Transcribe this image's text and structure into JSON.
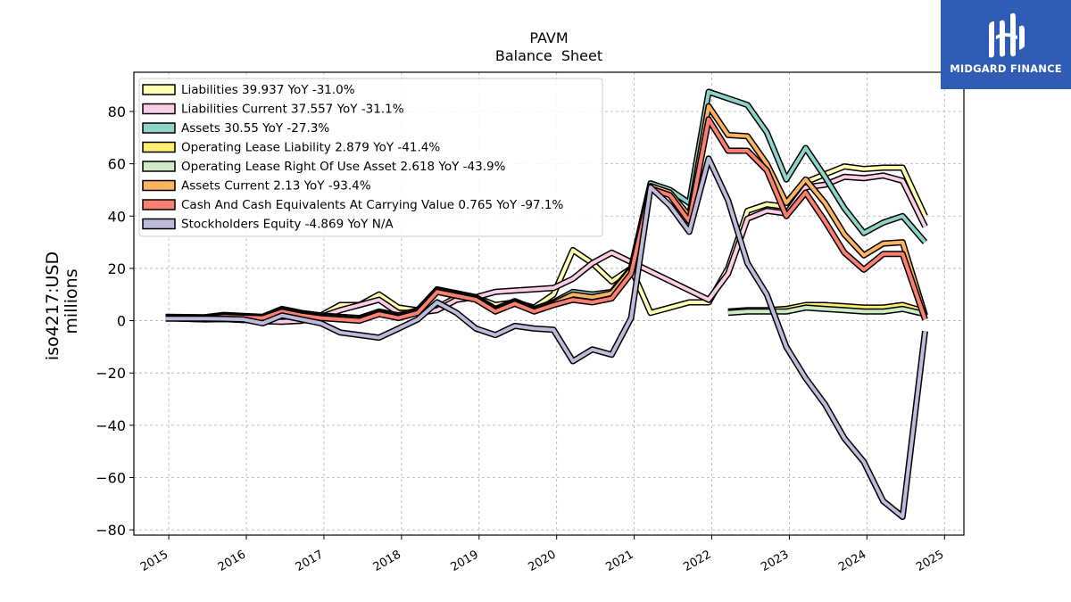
{
  "chart_data": {
    "type": "line",
    "title": "PAVM",
    "subtitle": "Balance  Sheet",
    "ylabel": "iso4217:USD",
    "ylabel2": "millions",
    "xlabel": "",
    "ylim": [
      -82,
      95
    ],
    "xlim": [
      2014.55,
      2025.25
    ],
    "yticks": [
      -80,
      -60,
      -40,
      -20,
      0,
      20,
      40,
      60,
      80
    ],
    "ytick_labels": [
      "−80",
      "−60",
      "−40",
      "−20",
      "0",
      "20",
      "40",
      "60",
      "80"
    ],
    "xticks": [
      2015,
      2016,
      2017,
      2018,
      2019,
      2020,
      2021,
      2022,
      2023,
      2024,
      2025
    ],
    "xtick_labels": [
      "2015",
      "2016",
      "2017",
      "2018",
      "2019",
      "2020",
      "2021",
      "2022",
      "2023",
      "2024",
      "2025"
    ],
    "grid": true,
    "legend_position": "top-left",
    "series": [
      {
        "name": "Liabilities",
        "legend_label": "Liabilities  39.937 YoY -31.0%",
        "color": "#ffffb3",
        "x": [
          2014.96,
          2015.46,
          2015.71,
          2015.96,
          2016.21,
          2016.46,
          2016.71,
          2016.96,
          2017.21,
          2017.46,
          2017.71,
          2017.96,
          2018.21,
          2018.46,
          2018.71,
          2018.96,
          2019.21,
          2019.46,
          2019.71,
          2019.96,
          2020.21,
          2020.46,
          2020.71,
          2020.96,
          2021.21,
          2021.46,
          2021.71,
          2021.96,
          2022.21,
          2022.46,
          2022.71,
          2022.96,
          2023.21,
          2023.46,
          2023.71,
          2023.96,
          2024.21,
          2024.46,
          2024.75
        ],
        "y": [
          1.0,
          0.5,
          0.6,
          0.3,
          -0.2,
          -0.4,
          0.0,
          2.0,
          6.0,
          6.0,
          10.0,
          5.0,
          4.0,
          5.0,
          9.0,
          9.0,
          6.0,
          7.0,
          5.0,
          10.0,
          27.0,
          22.0,
          15.0,
          20.0,
          3.0,
          5.0,
          7.0,
          7.0,
          20.0,
          42.0,
          44.5,
          43.5,
          53.0,
          56.0,
          59.0,
          58.0,
          58.5,
          58.5,
          40.0
        ]
      },
      {
        "name": "Liabilities Current",
        "legend_label": "Liabilities Current  37.557 YoY -31.1%",
        "color": "#fccde5",
        "x": [
          2014.96,
          2015.46,
          2015.71,
          2015.96,
          2016.21,
          2016.46,
          2016.71,
          2016.96,
          2017.21,
          2017.46,
          2017.71,
          2017.96,
          2018.21,
          2018.46,
          2018.71,
          2018.96,
          2019.21,
          2019.46,
          2019.71,
          2019.96,
          2020.21,
          2020.46,
          2020.71,
          2021.96,
          2022.21,
          2022.46,
          2022.71,
          2022.96,
          2023.21,
          2023.46,
          2023.71,
          2023.96,
          2024.21,
          2024.46,
          2024.75
        ],
        "y": [
          1.0,
          0.5,
          0.6,
          0.3,
          -0.2,
          -0.4,
          0.0,
          1.5,
          4.0,
          6.0,
          8.0,
          3.0,
          3.0,
          4.0,
          8.0,
          9.0,
          11.0,
          11.5,
          12.0,
          12.5,
          16.0,
          22.0,
          26.0,
          8.0,
          18.0,
          39.0,
          42.0,
          41.0,
          51.0,
          52.0,
          55.0,
          54.5,
          55.5,
          53.5,
          36.0
        ]
      },
      {
        "name": "Assets",
        "legend_label": "Assets  30.55 YoY -27.3%",
        "color": "#8dd3c7",
        "x": [
          2014.96,
          2015.46,
          2015.71,
          2015.96,
          2016.21,
          2016.46,
          2016.71,
          2016.96,
          2017.21,
          2017.46,
          2017.71,
          2017.96,
          2018.21,
          2018.46,
          2018.71,
          2018.96,
          2019.21,
          2019.46,
          2019.71,
          2019.96,
          2020.21,
          2020.46,
          2020.71,
          2020.96,
          2021.21,
          2021.46,
          2021.71,
          2021.96,
          2022.21,
          2022.46,
          2022.71,
          2022.96,
          2023.21,
          2023.46,
          2023.71,
          2023.96,
          2024.21,
          2024.46,
          2024.75
        ],
        "y": [
          1.5,
          1.3,
          2.2,
          1.8,
          1.5,
          4.5,
          3.0,
          2.0,
          1.5,
          1.0,
          3.5,
          2.0,
          4.0,
          12.0,
          10.5,
          9.0,
          4.5,
          7.5,
          4.5,
          7.0,
          11.0,
          10.0,
          11.0,
          20.0,
          52.5,
          50.0,
          45.0,
          87.5,
          85.0,
          82.5,
          72.0,
          54.0,
          66.0,
          55.0,
          43.0,
          33.5,
          37.5,
          40.0,
          30.0
        ]
      },
      {
        "name": "Operating Lease Liability",
        "legend_label": "Operating Lease Liability  2.879 YoY -41.4%",
        "color": "#ffed6f",
        "x": [
          2022.21,
          2022.46,
          2022.71,
          2022.96,
          2023.21,
          2023.46,
          2023.71,
          2023.96,
          2024.21,
          2024.46,
          2024.75
        ],
        "y": [
          3.5,
          4.0,
          4.0,
          4.5,
          6.0,
          6.0,
          5.5,
          5.0,
          5.0,
          6.0,
          3.5
        ]
      },
      {
        "name": "Operating Lease Right Of Use Asset",
        "legend_label": "Operating Lease Right Of Use Asset  2.618 YoY -43.9%",
        "color": "#ccebc5",
        "x": [
          2022.21,
          2022.46,
          2022.71,
          2022.96,
          2023.21,
          2023.46,
          2023.71,
          2023.96,
          2024.21,
          2024.46,
          2024.75
        ],
        "y": [
          3.0,
          3.5,
          3.5,
          3.5,
          5.0,
          4.5,
          4.0,
          3.5,
          3.5,
          4.5,
          2.5
        ]
      },
      {
        "name": "Assets Current",
        "legend_label": "Assets Current  2.13 YoY -93.4%",
        "color": "#fdb462",
        "x": [
          2014.96,
          2015.46,
          2015.71,
          2015.96,
          2016.21,
          2016.46,
          2016.71,
          2016.96,
          2017.21,
          2017.46,
          2017.71,
          2017.96,
          2018.21,
          2018.46,
          2018.71,
          2018.96,
          2019.21,
          2019.46,
          2019.71,
          2019.96,
          2020.21,
          2020.46,
          2020.71,
          2020.96,
          2021.21,
          2021.46,
          2021.71,
          2021.96,
          2022.21,
          2022.46,
          2022.71,
          2022.96,
          2023.21,
          2023.46,
          2023.71,
          2023.96,
          2024.21,
          2024.46,
          2024.75
        ],
        "y": [
          1.2,
          1.0,
          1.8,
          1.5,
          1.2,
          4.0,
          2.5,
          1.5,
          1.0,
          0.5,
          3.0,
          1.5,
          3.5,
          11.5,
          10.0,
          8.5,
          4.0,
          7.0,
          4.0,
          6.5,
          10.0,
          9.0,
          10.5,
          19.5,
          51.5,
          49.0,
          40.0,
          82.0,
          71.0,
          70.5,
          60.0,
          45.0,
          54.0,
          45.0,
          33.0,
          25.0,
          29.5,
          30.0,
          2.0
        ]
      },
      {
        "name": "Cash And Cash Equivalents At Carrying Value",
        "legend_label": "Cash And Cash Equivalents At Carrying Value  0.765 YoY -97.1%",
        "color": "#fb8072",
        "x": [
          2014.96,
          2015.46,
          2015.71,
          2015.96,
          2016.21,
          2016.46,
          2016.71,
          2016.96,
          2017.21,
          2017.46,
          2017.71,
          2017.96,
          2018.21,
          2018.46,
          2018.71,
          2018.96,
          2019.21,
          2019.46,
          2019.71,
          2019.96,
          2020.21,
          2020.46,
          2020.71,
          2020.96,
          2021.21,
          2021.46,
          2021.71,
          2021.96,
          2022.21,
          2022.46,
          2022.71,
          2022.96,
          2023.21,
          2023.46,
          2023.71,
          2023.96,
          2024.21,
          2024.46,
          2024.75
        ],
        "y": [
          1.0,
          0.8,
          1.5,
          1.2,
          1.0,
          3.5,
          2.0,
          1.0,
          0.5,
          0.0,
          2.5,
          1.0,
          3.0,
          11.0,
          9.5,
          8.0,
          3.5,
          6.5,
          3.5,
          6.0,
          8.0,
          7.0,
          8.5,
          18.0,
          50.5,
          48.0,
          38.0,
          77.0,
          65.0,
          65.0,
          57.5,
          40.0,
          49.0,
          38.0,
          26.0,
          19.5,
          25.5,
          25.5,
          0.5
        ]
      },
      {
        "name": "Stockholders Equity",
        "legend_label": "Stockholders Equity  -4.869 YoY N/A",
        "color": "#bebada",
        "x": [
          2014.96,
          2015.46,
          2015.71,
          2015.96,
          2016.21,
          2016.46,
          2016.71,
          2016.96,
          2017.21,
          2017.46,
          2017.71,
          2017.96,
          2018.21,
          2018.46,
          2018.71,
          2018.96,
          2019.21,
          2019.46,
          2019.71,
          2019.96,
          2020.21,
          2020.46,
          2020.71,
          2020.96,
          2021.21,
          2021.46,
          2021.71,
          2021.96,
          2022.21,
          2022.46,
          2022.71,
          2022.96,
          2023.21,
          2023.46,
          2023.71,
          2023.96,
          2024.21,
          2024.46,
          2024.75
        ],
        "y": [
          0.8,
          0.8,
          0.7,
          0.5,
          -1.0,
          2.0,
          0.5,
          -1.0,
          -4.5,
          -5.5,
          -6.5,
          -3.0,
          0.5,
          7.0,
          3.0,
          -3.0,
          -5.5,
          -2.0,
          -3.0,
          -3.5,
          -15.5,
          -11.0,
          -13.0,
          1.0,
          51.0,
          44.0,
          34.0,
          62.0,
          46.0,
          22.0,
          10.0,
          -10.0,
          -22.0,
          -32.0,
          -45.0,
          -54.0,
          -69.0,
          -75.0,
          -4.0
        ]
      }
    ]
  },
  "branding": {
    "logo_text": "MIDGARD FINANCE",
    "background_color": "#2f5cb5"
  }
}
